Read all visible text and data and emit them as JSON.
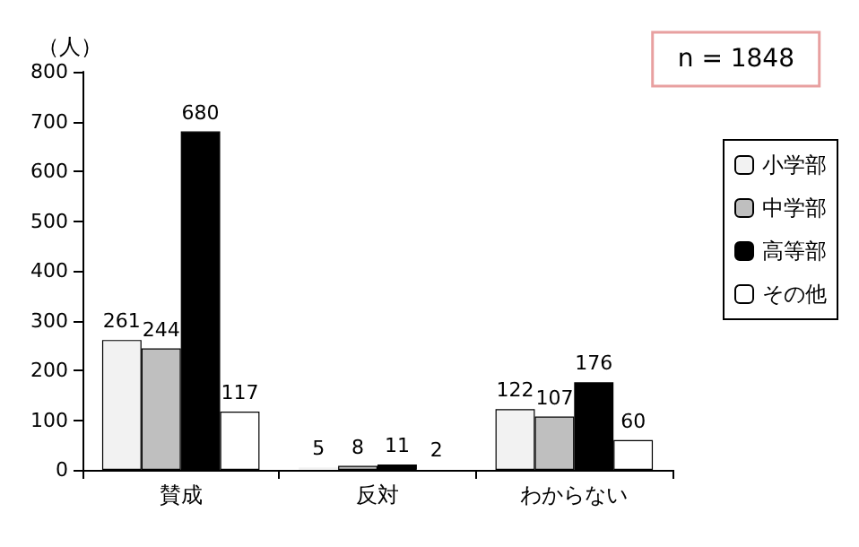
{
  "chart_data": {
    "type": "bar",
    "ylabel": "（人）",
    "categories": [
      "賛成",
      "反対",
      "わからない"
    ],
    "series": [
      {
        "name": "小学部",
        "color": "#f2f2f2",
        "values": [
          261,
          5,
          122
        ]
      },
      {
        "name": "中学部",
        "color": "#bfbfbf",
        "values": [
          244,
          8,
          107
        ]
      },
      {
        "name": "高等部",
        "color": "#000000",
        "values": [
          680,
          11,
          176
        ]
      },
      {
        "name": "その他",
        "color": "#ffffff",
        "values": [
          117,
          2,
          60
        ]
      }
    ],
    "ylim": [
      0,
      800
    ],
    "yticks": [
      0,
      100,
      200,
      300,
      400,
      500,
      600,
      700,
      800
    ],
    "grid": false,
    "legend": "right",
    "data_labels": true,
    "annotations": [
      "n = 1848"
    ]
  }
}
